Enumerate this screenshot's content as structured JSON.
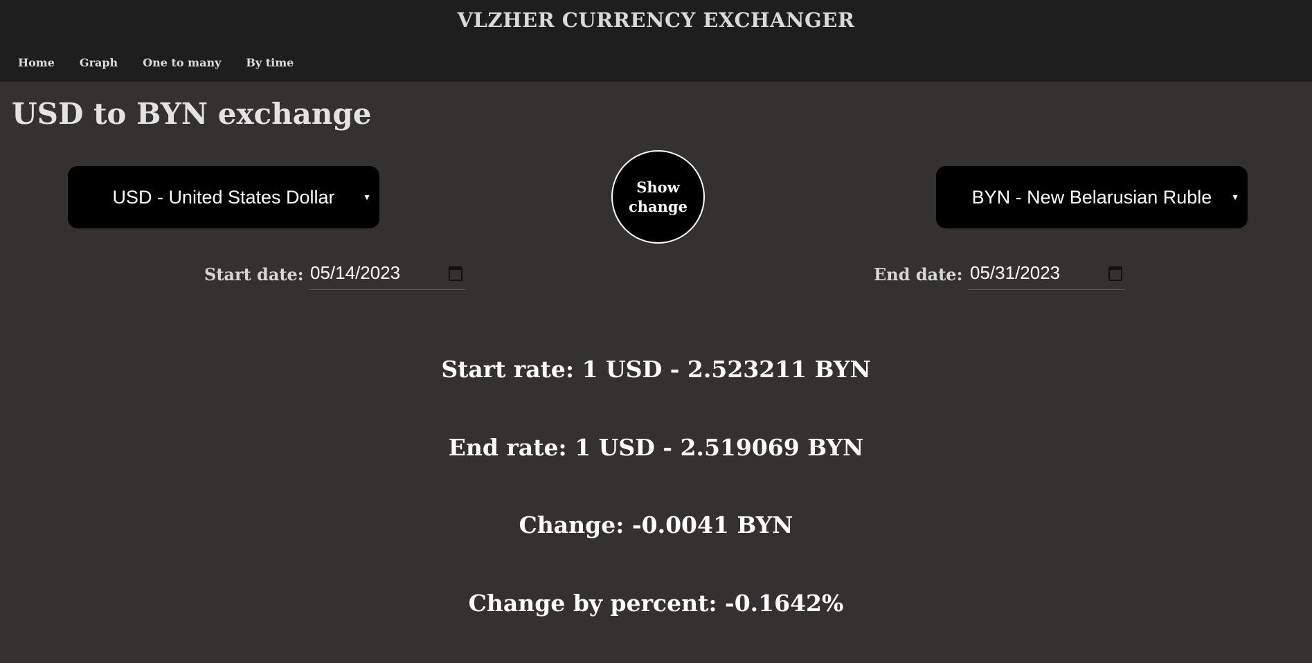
{
  "header": {
    "app_title": "VLZHER CURRENCY EXCHANGER",
    "nav": [
      "Home",
      "Graph",
      "One to many",
      "By time"
    ]
  },
  "page_title": "USD to BYN exchange",
  "from_currency": "USD - United States Dollar",
  "to_currency": "BYN - New Belarusian Ruble",
  "show_button": "Show change",
  "start_date": {
    "label": "Start date:",
    "value": "05/14/2023"
  },
  "end_date": {
    "label": "End date:",
    "value": "05/31/2023"
  },
  "results": {
    "start_rate": "Start rate: 1 USD - 2.523211 BYN",
    "end_rate": "End rate: 1 USD - 2.519069 BYN",
    "change": "Change: -0.0041 BYN",
    "change_percent": "Change by percent: -0.1642%"
  },
  "colors": {
    "header_bg": "#1e1e1e",
    "page_bg": "#333231",
    "control_bg": "#000000"
  },
  "icons": {
    "date_picker": "calendar-icon",
    "dropdown": "caret-down-icon"
  }
}
